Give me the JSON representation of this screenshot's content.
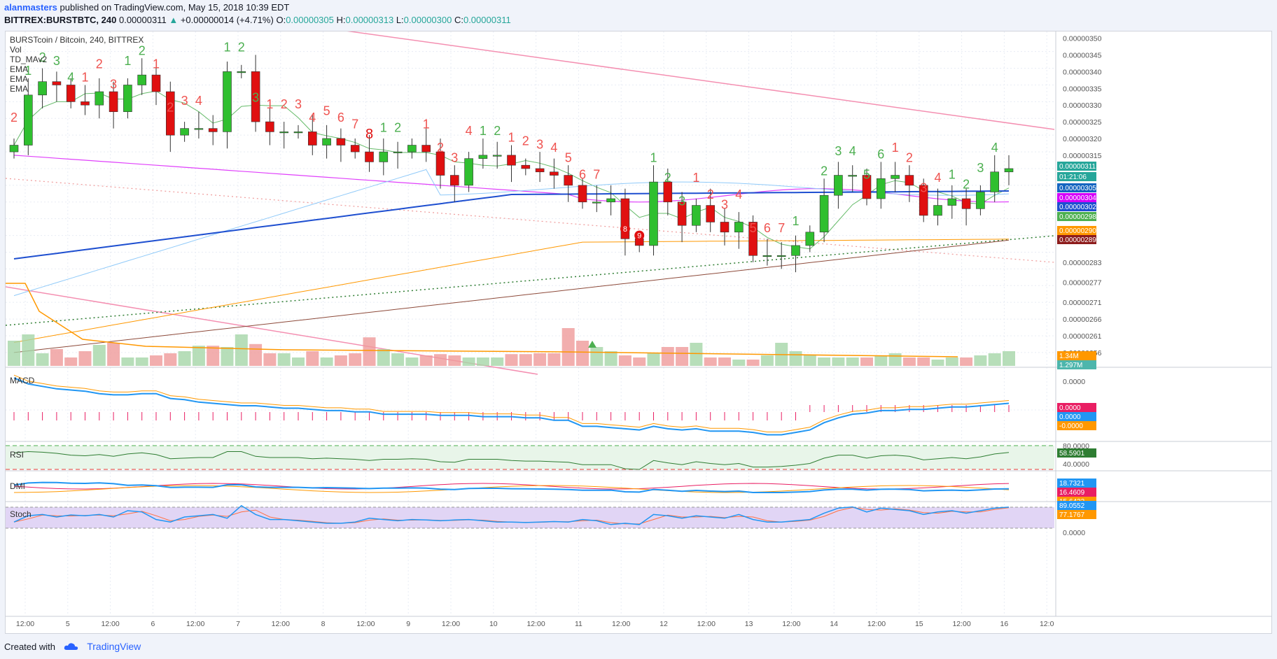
{
  "header": {
    "user": "alanmasters",
    "published": "published on TradingView.com, May 15, 2018 10:39 EDT",
    "symbol": "BITTREX:BURSTBTC, 240",
    "o_label": "O:",
    "o_value": "0.00000305",
    "h_label": "H:",
    "h_value": "0.00000313",
    "l_label": "L:",
    "l_value": "0.00000300",
    "c_label": "C:",
    "c_value": "0.00000311",
    "change_open": "0.00000311",
    "change": "+0.00000014 (+4.71%)"
  },
  "legend": {
    "title": "BURSTcoin / Bitcoin, 240, BITTREX",
    "items": [
      "Vol",
      "TD_MAv2",
      "EMA",
      "EMA",
      "EMA"
    ]
  },
  "panes": {
    "macd": "MACD",
    "rsi": "RSI",
    "dmi": "DMI",
    "stoch": "Stoch"
  },
  "price_axis": {
    "labels": [
      "0.00000350",
      "0.00000345",
      "0.00000340",
      "0.00000335",
      "0.00000330",
      "0.00000325",
      "0.00000320",
      "0.00000315",
      "0.00000283",
      "0.00000277",
      "0.00000271",
      "0.00000266",
      "0.00000261",
      "0.00000256"
    ],
    "badges": [
      {
        "text": "0.00000311",
        "color": "#26a69a"
      },
      {
        "text": "01:21:06",
        "color": "#26a69a"
      },
      {
        "text": "0.00000305",
        "color": "#1565c0"
      },
      {
        "text": "0.00000304",
        "color": "#d500f9"
      },
      {
        "text": "0.00000302",
        "color": "#1e4fd0"
      },
      {
        "text": "0.00000298",
        "color": "#4caf50"
      },
      {
        "text": "0.00000290",
        "color": "#ff9800"
      },
      {
        "text": "0.00000289",
        "color": "#8d1c1c"
      },
      {
        "text": "1.34M",
        "color": "#ff9800"
      },
      {
        "text": "1.297M",
        "color": "#4db6ac"
      }
    ]
  },
  "macd_axis": {
    "labels": [
      "0.0000"
    ],
    "badges": [
      {
        "text": "0.0000",
        "color": "#e91e63"
      },
      {
        "text": "0.0000",
        "color": "#2196f3"
      },
      {
        "text": "-0.0000",
        "color": "#ff9800"
      }
    ]
  },
  "rsi_axis": {
    "labels": [
      "80.0000",
      "40.0000"
    ],
    "badges": [
      {
        "text": "58.5901",
        "color": "#2e7d32"
      }
    ]
  },
  "dmi_axis": {
    "badges": [
      {
        "text": "18.7321",
        "color": "#2196f3"
      },
      {
        "text": "16.4609",
        "color": "#e91e63"
      },
      {
        "text": "15.6422",
        "color": "#ff9800"
      }
    ]
  },
  "stoch_axis": {
    "labels": [
      "0.0000"
    ],
    "badges": [
      {
        "text": "89.0552",
        "color": "#2196f3"
      },
      {
        "text": "77.1767",
        "color": "#ff9800"
      }
    ]
  },
  "time_axis": {
    "labels": [
      "12:00",
      "5",
      "12:00",
      "6",
      "12:00",
      "7",
      "12:00",
      "8",
      "12:00",
      "9",
      "12:00",
      "10",
      "12:00",
      "11",
      "12:00",
      "12",
      "12:00",
      "13",
      "12:00",
      "14",
      "12:00",
      "15",
      "12:00",
      "16",
      "12:0"
    ]
  },
  "td_counts": [
    {
      "t": "2",
      "c": "s"
    },
    {
      "t": "1",
      "c": "b"
    },
    {
      "t": "2",
      "c": "b"
    },
    {
      "t": "3",
      "c": "b"
    },
    {
      "t": "4",
      "c": "b"
    },
    {
      "t": "1",
      "c": "s"
    },
    {
      "t": "2",
      "c": "s"
    },
    {
      "t": "3",
      "c": "s"
    },
    {
      "t": "1",
      "c": "b"
    },
    {
      "t": "2",
      "c": "b"
    },
    {
      "t": "1",
      "c": "s"
    },
    {
      "t": "2",
      "c": "s"
    },
    {
      "t": "3",
      "c": "s"
    },
    {
      "t": "4",
      "c": "s"
    },
    {
      "t": "1",
      "c": "b"
    },
    {
      "t": "2",
      "c": "b"
    },
    {
      "t": "3",
      "c": "b"
    },
    {
      "t": "1",
      "c": "s"
    },
    {
      "t": "2",
      "c": "s"
    },
    {
      "t": "3",
      "c": "s"
    },
    {
      "t": "4",
      "c": "s"
    },
    {
      "t": "5",
      "c": "s"
    },
    {
      "t": "6",
      "c": "s"
    },
    {
      "t": "7",
      "c": "s"
    },
    {
      "t": "8",
      "c": "S"
    },
    {
      "t": "1",
      "c": "b"
    },
    {
      "t": "2",
      "c": "b"
    },
    {
      "t": "1",
      "c": "s"
    },
    {
      "t": "2",
      "c": "s"
    },
    {
      "t": "3",
      "c": "s"
    },
    {
      "t": "4",
      "c": "s"
    },
    {
      "t": "1",
      "c": "b"
    },
    {
      "t": "2",
      "c": "b"
    },
    {
      "t": "1",
      "c": "s"
    },
    {
      "t": "2",
      "c": "s"
    },
    {
      "t": "3",
      "c": "s"
    },
    {
      "t": "4",
      "c": "s"
    },
    {
      "t": "5",
      "c": "s"
    },
    {
      "t": "6",
      "c": "s"
    },
    {
      "t": "7",
      "c": "s"
    },
    {
      "t": "8",
      "c": "badge"
    },
    {
      "t": "9",
      "c": "badge"
    },
    {
      "t": "1",
      "c": "b"
    },
    {
      "t": "2",
      "c": "b"
    },
    {
      "t": "3",
      "c": "b"
    },
    {
      "t": "1",
      "c": "s"
    },
    {
      "t": "2",
      "c": "s"
    },
    {
      "t": "3",
      "c": "s"
    },
    {
      "t": "4",
      "c": "s"
    },
    {
      "t": "5",
      "c": "s"
    },
    {
      "t": "6",
      "c": "s"
    },
    {
      "t": "7",
      "c": "s"
    },
    {
      "t": "1",
      "c": "b"
    },
    {
      "t": "2",
      "c": "b"
    },
    {
      "t": "3",
      "c": "b"
    },
    {
      "t": "4",
      "c": "b"
    },
    {
      "t": "5",
      "c": "b"
    },
    {
      "t": "6",
      "c": "b"
    },
    {
      "t": "1",
      "c": "s"
    },
    {
      "t": "2",
      "c": "s"
    },
    {
      "t": "3",
      "c": "s"
    },
    {
      "t": "4",
      "c": "s"
    },
    {
      "t": "1",
      "c": "b"
    },
    {
      "t": "2",
      "c": "b"
    },
    {
      "t": "3",
      "c": "b"
    },
    {
      "t": "4",
      "c": "b"
    }
  ],
  "footer": {
    "created_with": "Created with",
    "brand": "TradingView"
  },
  "chart_data": {
    "type": "candlestick",
    "title": "BURSTcoin / Bitcoin, 240, BITTREX",
    "interval": "240",
    "x_labels": [
      "12:00",
      "5",
      "12:00",
      "6",
      "12:00",
      "7",
      "12:00",
      "8",
      "12:00",
      "9",
      "12:00",
      "10",
      "12:00",
      "11",
      "12:00",
      "12",
      "12:00",
      "13",
      "12:00",
      "14",
      "12:00",
      "15",
      "12:00",
      "16"
    ],
    "ohlc_last": {
      "open": 3.05e-06,
      "high": 3.13e-06,
      "low": 3e-06,
      "close": 3.11e-06
    },
    "ylim": [
      2.52e-06,
      3.52e-06
    ],
    "closes": [
      318,
      333,
      337,
      336,
      331,
      330,
      334,
      328,
      336,
      339,
      334,
      321,
      323,
      323,
      322,
      340,
      340,
      325,
      322,
      322,
      322,
      318,
      320,
      318,
      316,
      313,
      316,
      316,
      318,
      316,
      309,
      306,
      314,
      315,
      315,
      312,
      311,
      310,
      309,
      306,
      301,
      301,
      302,
      290,
      288,
      307,
      301,
      294,
      300,
      295,
      292,
      295,
      285,
      285,
      285,
      288,
      292,
      303,
      309,
      309,
      302,
      308,
      309,
      306,
      297,
      300,
      302,
      299,
      304,
      310,
      311
    ],
    "volume_ratio": [
      0.6,
      0.75,
      0.3,
      0.4,
      0.2,
      0.35,
      0.5,
      0.55,
      0.2,
      0.2,
      0.25,
      0.3,
      0.35,
      0.48,
      0.48,
      0.45,
      0.75,
      0.52,
      0.3,
      0.3,
      0.2,
      0.35,
      0.2,
      0.25,
      0.3,
      0.68,
      0.4,
      0.3,
      0.2,
      0.25,
      0.28,
      0.25,
      0.2,
      0.2,
      0.2,
      0.28,
      0.28,
      0.3,
      0.3,
      0.9,
      0.6,
      0.45,
      0.35,
      0.25,
      0.2,
      0.3,
      0.45,
      0.45,
      0.55,
      0.2,
      0.2,
      0.15,
      0.15,
      0.25,
      0.55,
      0.35,
      0.25,
      0.2,
      0.2,
      0.2,
      0.2,
      0.25,
      0.3,
      0.2,
      0.2,
      0.15,
      0.2,
      0.2,
      0.25,
      0.3,
      0.35
    ],
    "macd_pct": [
      0.55,
      0.5,
      0.48,
      0.46,
      0.45,
      0.44,
      0.42,
      0.41,
      0.41,
      0.42,
      0.42,
      0.38,
      0.37,
      0.35,
      0.34,
      0.33,
      0.32,
      0.32,
      0.31,
      0.3,
      0.3,
      0.29,
      0.28,
      0.28,
      0.27,
      0.27,
      0.25,
      0.25,
      0.25,
      0.25,
      0.24,
      0.24,
      0.24,
      0.23,
      0.23,
      0.23,
      0.22,
      0.22,
      0.2,
      0.2,
      0.15,
      0.15,
      0.14,
      0.13,
      0.12,
      0.15,
      0.13,
      0.12,
      0.13,
      0.11,
      0.11,
      0.11,
      0.1,
      0.08,
      0.08,
      0.1,
      0.12,
      0.18,
      0.22,
      0.25,
      0.26,
      0.28,
      0.28,
      0.29,
      0.29,
      0.3,
      0.31,
      0.31,
      0.32,
      0.33,
      0.34
    ],
    "rsi": [
      58,
      60,
      59,
      57,
      54,
      53,
      55,
      52,
      56,
      58,
      55,
      48,
      49,
      50,
      50,
      60,
      60,
      52,
      50,
      50,
      50,
      48,
      49,
      48,
      47,
      45,
      47,
      47,
      48,
      47,
      43,
      42,
      47,
      47,
      47,
      45,
      44,
      44,
      43,
      42,
      38,
      38,
      38,
      31,
      30,
      45,
      41,
      38,
      43,
      40,
      38,
      40,
      34,
      34,
      35,
      37,
      40,
      49,
      54,
      54,
      49,
      53,
      54,
      52,
      46,
      48,
      50,
      48,
      51,
      56,
      58.59
    ],
    "stoch": [
      30,
      55,
      60,
      50,
      58,
      55,
      60,
      50,
      75,
      70,
      40,
      30,
      50,
      55,
      60,
      45,
      95,
      60,
      40,
      40,
      35,
      30,
      25,
      25,
      30,
      45,
      40,
      35,
      40,
      38,
      35,
      38,
      40,
      35,
      30,
      30,
      28,
      30,
      32,
      30,
      40,
      35,
      20,
      25,
      20,
      60,
      55,
      45,
      55,
      50,
      45,
      60,
      40,
      30,
      30,
      35,
      40,
      65,
      85,
      90,
      70,
      85,
      80,
      75,
      60,
      70,
      75,
      65,
      75,
      85,
      89.06
    ]
  }
}
